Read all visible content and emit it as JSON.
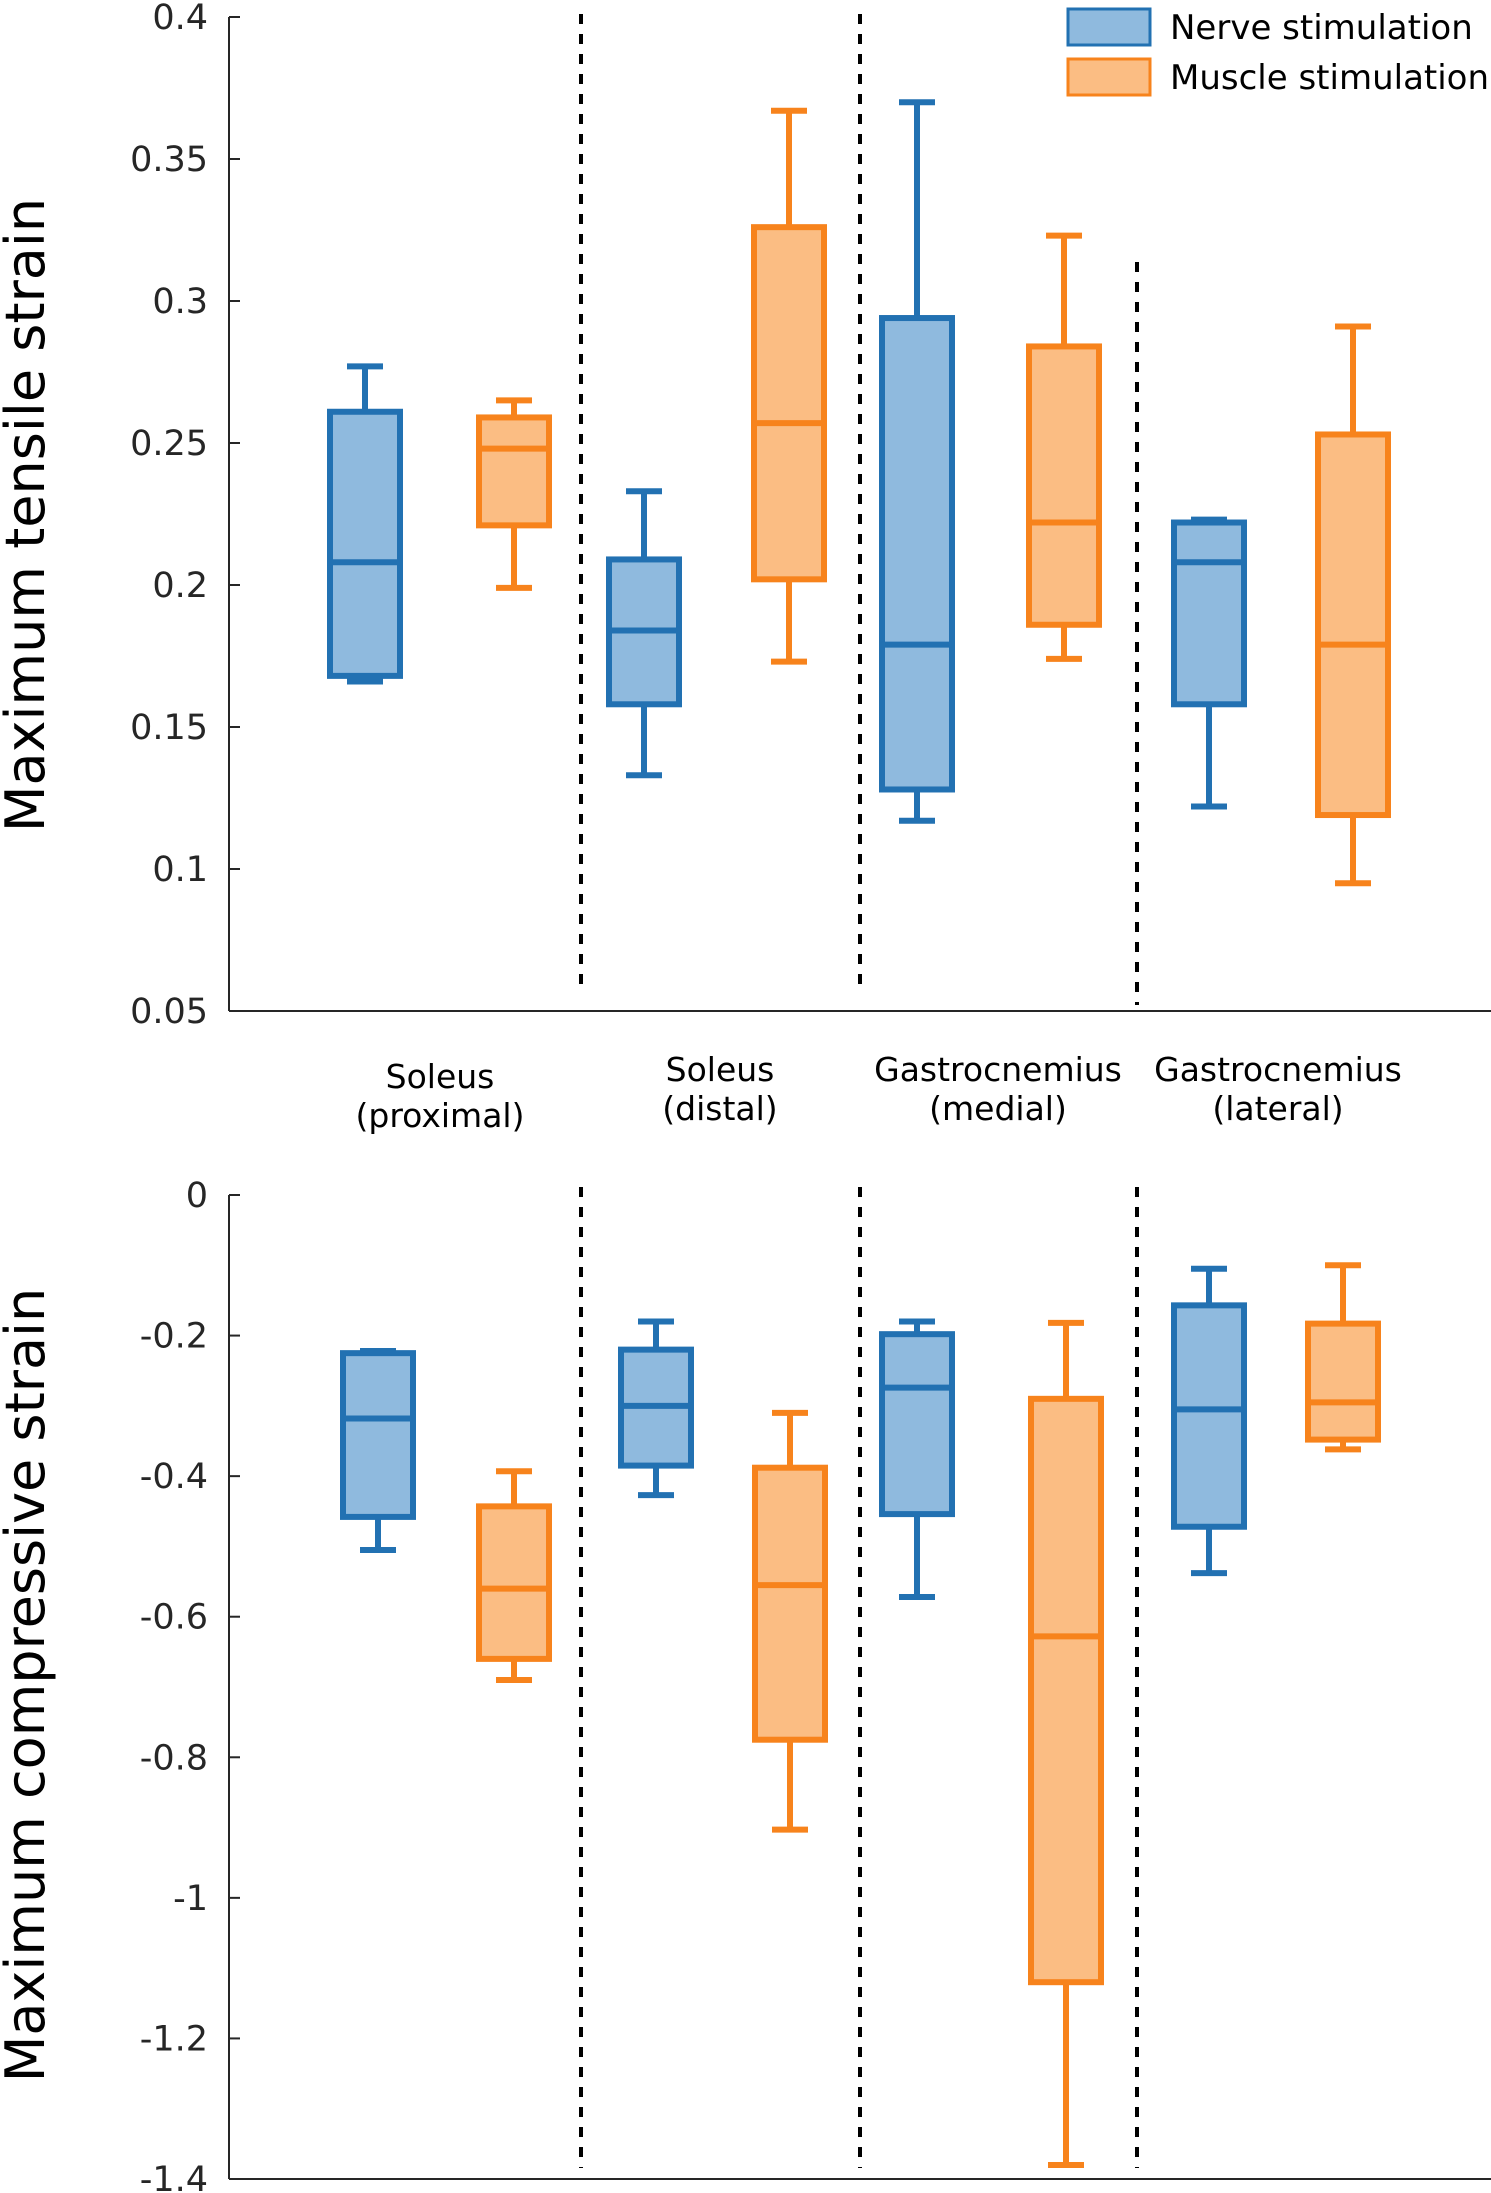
{
  "legend": {
    "nerve_label": "Nerve stimulation",
    "muscle_label": "Muscle stimulation"
  },
  "colors": {
    "nerve_edge": "#2271b2",
    "nerve_fill": "#8fbade",
    "muscle_edge": "#f7831c",
    "muscle_fill": "#fbbd83",
    "axis": "#262626"
  },
  "categories": [
    [
      "Soleus",
      "(proximal)"
    ],
    [
      "Soleus",
      "(distal)"
    ],
    [
      "Gastrocnemius",
      "(medial)"
    ],
    [
      "Gastrocnemius",
      "(lateral)"
    ]
  ],
  "chart_data": [
    {
      "type": "box",
      "title": "",
      "xlabel": "",
      "ylabel": "Maximum tensile strain",
      "ylim": [
        0.05,
        0.4
      ],
      "yticks": [
        "0.4",
        "0.35",
        "0.3",
        "0.25",
        "0.2",
        "0.15",
        "0.1",
        "0.05"
      ],
      "ytick_values": [
        0.4,
        0.35,
        0.3,
        0.25,
        0.2,
        0.15,
        0.1,
        0.05
      ],
      "categories": [
        "Soleus (proximal)",
        "Soleus (distal)",
        "Gastrocnemius (medial)",
        "Gastrocnemius (lateral)"
      ],
      "series": [
        {
          "name": "Nerve stimulation",
          "boxes": [
            {
              "min": 0.166,
              "q1": 0.168,
              "median": 0.208,
              "q3": 0.261,
              "max": 0.277
            },
            {
              "min": 0.133,
              "q1": 0.158,
              "median": 0.184,
              "q3": 0.209,
              "max": 0.233
            },
            {
              "min": 0.117,
              "q1": 0.128,
              "median": 0.179,
              "q3": 0.294,
              "max": 0.37
            },
            {
              "min": 0.122,
              "q1": 0.158,
              "median": 0.208,
              "q3": 0.222,
              "max": 0.223
            }
          ]
        },
        {
          "name": "Muscle stimulation",
          "boxes": [
            {
              "min": 0.199,
              "q1": 0.221,
              "median": 0.248,
              "q3": 0.259,
              "max": 0.265
            },
            {
              "min": 0.173,
              "q1": 0.202,
              "median": 0.257,
              "q3": 0.326,
              "max": 0.367
            },
            {
              "min": 0.174,
              "q1": 0.186,
              "median": 0.222,
              "q3": 0.284,
              "max": 0.323
            },
            {
              "min": 0.095,
              "q1": 0.119,
              "median": 0.179,
              "q3": 0.253,
              "max": 0.291
            }
          ]
        }
      ]
    },
    {
      "type": "box",
      "title": "",
      "xlabel": "",
      "ylabel": "Maximum compressive strain",
      "ylim": [
        -1.4,
        0
      ],
      "yticks": [
        "0",
        "-0.2",
        "-0.4",
        "-0.6",
        "-0.8",
        "-1",
        "-1.2",
        "-1.4"
      ],
      "ytick_values": [
        0,
        -0.2,
        -0.4,
        -0.6,
        -0.8,
        -1,
        -1.2,
        -1.4
      ],
      "categories": [
        "Soleus (proximal)",
        "Soleus (distal)",
        "Gastrocnemius (medial)",
        "Gastrocnemius (lateral)"
      ],
      "series": [
        {
          "name": "Nerve stimulation",
          "boxes": [
            {
              "min": -0.505,
              "q1": -0.458,
              "median": -0.318,
              "q3": -0.225,
              "max": -0.222
            },
            {
              "min": -0.427,
              "q1": -0.385,
              "median": -0.3,
              "q3": -0.22,
              "max": -0.18
            },
            {
              "min": -0.572,
              "q1": -0.454,
              "median": -0.274,
              "q3": -0.198,
              "max": -0.18
            },
            {
              "min": -0.538,
              "q1": -0.472,
              "median": -0.305,
              "q3": -0.157,
              "max": -0.105
            }
          ]
        },
        {
          "name": "Muscle stimulation",
          "boxes": [
            {
              "min": -0.69,
              "q1": -0.66,
              "median": -0.56,
              "q3": -0.443,
              "max": -0.393
            },
            {
              "min": -0.903,
              "q1": -0.775,
              "median": -0.555,
              "q3": -0.388,
              "max": -0.31
            },
            {
              "min": -1.38,
              "q1": -1.12,
              "median": -0.628,
              "q3": -0.29,
              "max": -0.182
            },
            {
              "min": -0.362,
              "q1": -0.348,
              "median": -0.295,
              "q3": -0.183,
              "max": -0.1
            }
          ]
        }
      ]
    }
  ]
}
